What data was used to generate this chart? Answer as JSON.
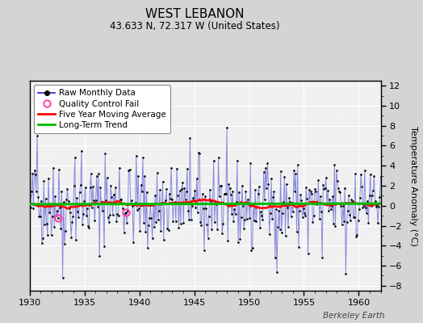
{
  "title": "WEST LEBANON",
  "subtitle": "43.633 N, 72.317 W (United States)",
  "ylabel": "Temperature Anomaly (°C)",
  "credit": "Berkeley Earth",
  "xlim": [
    1930,
    1962
  ],
  "ylim": [
    -8.5,
    12.5
  ],
  "yticks": [
    -8,
    -6,
    -4,
    -2,
    0,
    2,
    4,
    6,
    8,
    10,
    12
  ],
  "xticks": [
    1930,
    1935,
    1940,
    1945,
    1950,
    1955,
    1960
  ],
  "fig_bg_color": "#d4d4d4",
  "plot_bg_color": "#f0f0f0",
  "grid_color": "#ffffff",
  "raw_line_color": "#3333cc",
  "raw_dot_color": "#000000",
  "qc_fail_color": "#ff44aa",
  "moving_avg_color": "#ff0000",
  "trend_color": "#00bb00",
  "raw_line_alpha": 0.55,
  "seed": 42,
  "start_year": 1930.0,
  "end_year": 1962.0,
  "n_months": 373,
  "moving_avg_window": 60,
  "trend_slope": 0.002,
  "trend_intercept": 0.15,
  "qc_fail_indices": [
    30,
    102
  ],
  "legend_loc": "upper left",
  "title_fontsize": 11,
  "subtitle_fontsize": 8.5,
  "tick_fontsize": 8,
  "ylabel_fontsize": 8
}
